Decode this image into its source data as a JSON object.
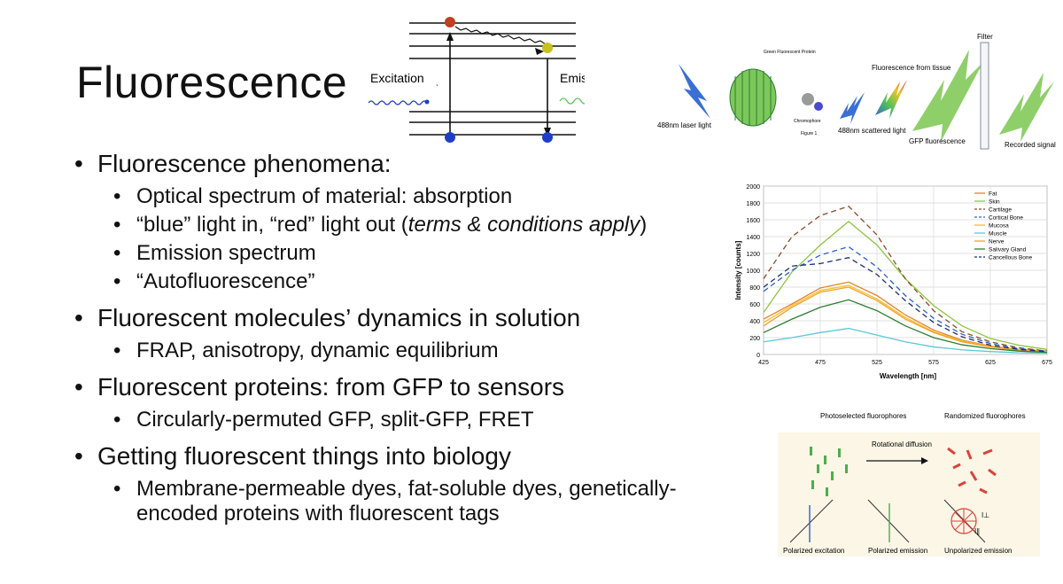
{
  "slide": {
    "title": "Fluorescence",
    "bullets": [
      {
        "text": "Fluorescence phenomena:",
        "sub": [
          {
            "text": "Optical spectrum of material: absorption"
          },
          {
            "text_before": "“blue” light in, “red” light out (",
            "text_italic": "terms & conditions apply",
            "text_after": ")"
          },
          {
            "text": "Emission spectrum"
          },
          {
            "text": "“Autofluorescence”"
          }
        ]
      },
      {
        "text": "Fluorescent molecules’ dynamics in solution",
        "sub": [
          {
            "text": "FRAP, anisotropy, dynamic equilibrium"
          }
        ]
      },
      {
        "text": "Fluorescent proteins: from GFP to sensors",
        "sub": [
          {
            "text": "Circularly-permuted GFP, split-GFP, FRET"
          }
        ]
      },
      {
        "text": "Getting fluorescent things into biology",
        "sub": [
          {
            "text": "Membrane-permeable dyes, fat-soluble dyes, genetically-encoded proteins with fluorescent tags"
          }
        ]
      }
    ]
  },
  "jablonski": {
    "excitation": "Excitation",
    "emission": "Emission",
    "small_mark": "ˎ"
  },
  "gfp_figure": {
    "laser": "488nm laser light",
    "scattered": "488nm scattered light",
    "tissue": "Fluorescence from tissue",
    "gfp": "GFP fluorescence",
    "filter": "Filter",
    "recorded": "Recorded signal",
    "protein_label": "Green Fluorescent Protein",
    "figure_label": "Figure 1",
    "chromophore": "Chromophore"
  },
  "colors": {
    "excitation_wave": "#1f3ec8",
    "emission_wave": "#55c455",
    "gfp_green": "#8fcf6a",
    "laser_blue": "#3a6fd6"
  },
  "chart_data": {
    "type": "line",
    "title": "",
    "xlabel": "Wavelength [nm]",
    "ylabel": "Intensity [counts]",
    "xlim": [
      425,
      675
    ],
    "ylim": [
      0,
      2000
    ],
    "x_ticks": [
      425,
      475,
      525,
      575,
      625,
      675
    ],
    "y_ticks": [
      0,
      200,
      400,
      600,
      800,
      1000,
      1200,
      1400,
      1600,
      1800,
      2000
    ],
    "grid": true,
    "legend_position": "top-right",
    "x": [
      425,
      450,
      475,
      500,
      525,
      550,
      575,
      600,
      625,
      650,
      675
    ],
    "series": [
      {
        "name": "Fat",
        "color": "#e8822a",
        "dash": "",
        "values": [
          420,
          600,
          790,
          860,
          700,
          470,
          290,
          170,
          100,
          60,
          40
        ]
      },
      {
        "name": "Skin",
        "color": "#8cc63f",
        "dash": "",
        "values": [
          500,
          980,
          1300,
          1580,
          1300,
          900,
          580,
          340,
          190,
          110,
          60
        ]
      },
      {
        "name": "Cartilage",
        "color": "#8b4a2b",
        "dash": "6,4",
        "values": [
          900,
          1400,
          1650,
          1760,
          1420,
          900,
          520,
          270,
          150,
          80,
          40
        ]
      },
      {
        "name": "Cortical Bone",
        "color": "#2f5fc8",
        "dash": "6,4",
        "values": [
          750,
          1000,
          1180,
          1280,
          1040,
          700,
          430,
          240,
          130,
          70,
          40
        ]
      },
      {
        "name": "Mucosa",
        "color": "#f2c12e",
        "dash": "",
        "values": [
          380,
          580,
          760,
          820,
          660,
          440,
          270,
          160,
          95,
          55,
          35
        ]
      },
      {
        "name": "Muscle",
        "color": "#5cc8d8",
        "dash": "",
        "values": [
          150,
          200,
          260,
          310,
          230,
          150,
          90,
          55,
          35,
          20,
          15
        ]
      },
      {
        "name": "Nerve",
        "color": "#f0a22c",
        "dash": "",
        "values": [
          340,
          560,
          740,
          800,
          640,
          420,
          260,
          150,
          90,
          50,
          30
        ]
      },
      {
        "name": "Salivary Gland",
        "color": "#2e7d32",
        "dash": "",
        "values": [
          260,
          420,
          560,
          650,
          520,
          340,
          200,
          115,
          70,
          40,
          25
        ]
      },
      {
        "name": "Cancellous Bone",
        "color": "#1b2f6b",
        "dash": "6,4",
        "values": [
          800,
          1050,
          1080,
          1150,
          950,
          640,
          380,
          210,
          110,
          60,
          35
        ]
      }
    ]
  },
  "anisotropy": {
    "photoselected": "Photoselected fluorophores",
    "rotational": "Rotational diffusion",
    "randomized": "Randomized fluorophores",
    "polarized_exc": "Polarized excitation",
    "polarized_em": "Polarized emission",
    "unpolarized_em": "Unpolarized emission",
    "i_perp": "I⊥",
    "i_par": "I∥"
  }
}
